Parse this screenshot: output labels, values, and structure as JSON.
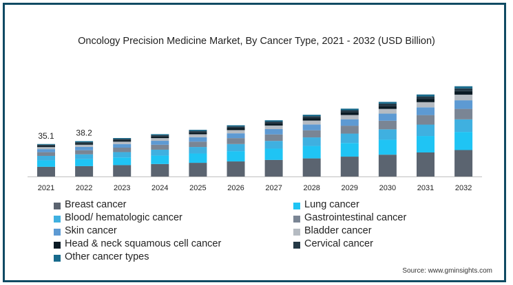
{
  "chart_data": {
    "type": "bar",
    "stacked": true,
    "title": "Oncology Precision Medicine Market, By Cancer Type, 2021 - 2032 (USD Billion)",
    "categories": [
      "2021",
      "2022",
      "2023",
      "2024",
      "2025",
      "2026",
      "2027",
      "2028",
      "2029",
      "2030",
      "2031",
      "2032"
    ],
    "data_labels": [
      "35.1",
      "38.2"
    ],
    "ylim": [
      0,
      130
    ],
    "series": [
      {
        "name": "Breast cancer",
        "color": "#5b6470",
        "values": [
          10.5,
          11.2,
          12.3,
          13.5,
          14.8,
          16.3,
          17.9,
          19.6,
          21.5,
          23.6,
          26.0,
          28.6
        ]
      },
      {
        "name": "Lung cancer",
        "color": "#1fc4f4",
        "values": [
          7.0,
          7.6,
          8.3,
          9.1,
          10.1,
          11.1,
          12.2,
          13.4,
          14.7,
          16.2,
          17.8,
          19.6
        ]
      },
      {
        "name": "Blood/ hematologic cancer",
        "color": "#3fb0e0",
        "values": [
          4.8,
          5.2,
          5.8,
          6.4,
          7.0,
          7.7,
          8.4,
          9.3,
          10.2,
          11.2,
          12.3,
          13.6
        ]
      },
      {
        "name": "Gastrointestinal cancer",
        "color": "#7a8594",
        "values": [
          4.0,
          4.4,
          4.8,
          5.3,
          5.8,
          6.4,
          7.0,
          7.7,
          8.5,
          9.3,
          10.3,
          11.3
        ]
      },
      {
        "name": "Skin cancer",
        "color": "#5d9ad3",
        "values": [
          3.3,
          3.6,
          3.9,
          4.3,
          4.8,
          5.2,
          5.8,
          6.3,
          7.0,
          7.7,
          8.4,
          9.3
        ]
      },
      {
        "name": "Bladder cancer",
        "color": "#b5bbc2",
        "values": [
          2.2,
          2.4,
          2.6,
          2.9,
          3.2,
          3.5,
          3.8,
          4.2,
          4.6,
          5.1,
          5.6,
          6.1
        ]
      },
      {
        "name": "Head & neck squamous cell cancer",
        "color": "#0a1a24",
        "values": [
          1.4,
          1.5,
          1.6,
          1.8,
          2.0,
          2.2,
          2.4,
          2.6,
          2.9,
          3.2,
          3.5,
          3.8
        ]
      },
      {
        "name": "Cervical cancer",
        "color": "#243845",
        "values": [
          1.1,
          1.2,
          1.3,
          1.4,
          1.6,
          1.7,
          1.9,
          2.1,
          2.3,
          2.5,
          2.7,
          3.0
        ]
      },
      {
        "name": "Other cancer types",
        "color": "#176a8c",
        "values": [
          0.8,
          1.1,
          1.0,
          1.1,
          1.2,
          1.3,
          1.4,
          1.6,
          1.7,
          1.9,
          2.1,
          2.3
        ]
      }
    ]
  },
  "source": "Source: www.gminsights.com"
}
